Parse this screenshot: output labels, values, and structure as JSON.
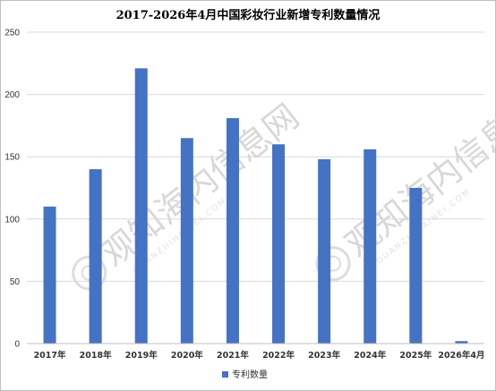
{
  "chart_data": {
    "type": "bar",
    "title": "2017-2026年4月中国彩妆行业新增专利数量情况",
    "categories": [
      "2017年",
      "2018年",
      "2019年",
      "2020年",
      "2021年",
      "2022年",
      "2023年",
      "2024年",
      "2025年",
      "2026年4月"
    ],
    "series": [
      {
        "name": "专利数量",
        "values": [
          110,
          140,
          221,
          165,
          181,
          160,
          148,
          156,
          125,
          2
        ]
      }
    ],
    "ylim": [
      0,
      250
    ],
    "yticks": [
      0,
      50,
      100,
      150,
      200,
      250
    ],
    "xlabel": "",
    "ylabel": "",
    "grid": true,
    "legend_position": "bottom",
    "bar_color": "#4472c4"
  },
  "watermark": {
    "brand": "观知海内信息网",
    "domain": "GUANZHIHAINEI.COM"
  }
}
